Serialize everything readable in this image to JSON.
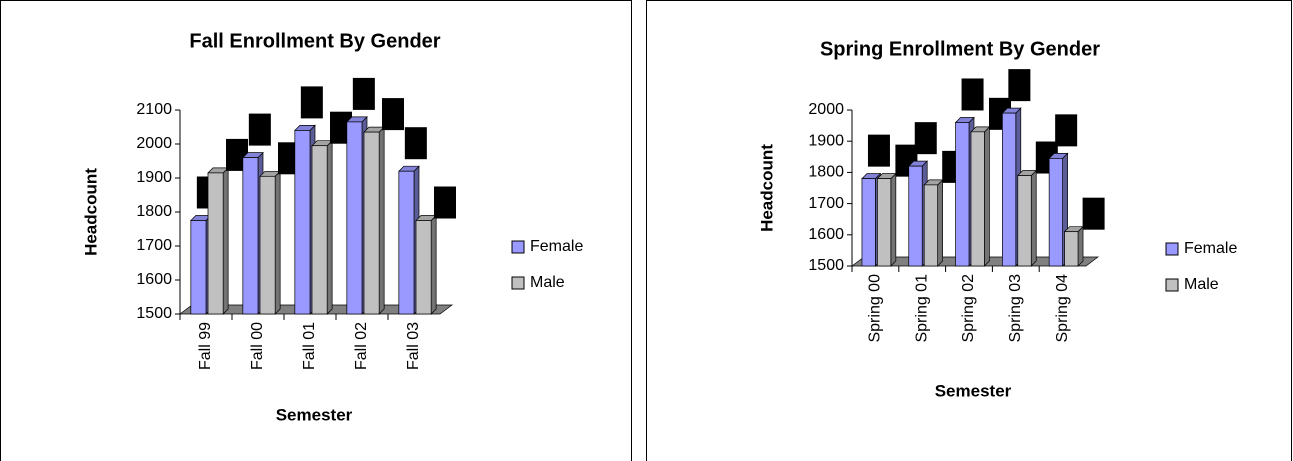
{
  "chart_data": [
    {
      "type": "bar3d",
      "title": "Fall Enrollment By Gender",
      "x_label": "Semester",
      "y_label": "Headcount",
      "categories": [
        "Fall 99",
        "Fall 00",
        "Fall 01",
        "Fall 02",
        "Fall 03"
      ],
      "series": [
        {
          "name": "Female",
          "color": "#9999ff",
          "values": [
            1775,
            1960,
            2040,
            2065,
            1920
          ]
        },
        {
          "name": "Male",
          "color": "#c0c0c0",
          "values": [
            1915,
            1905,
            1995,
            2035,
            1775
          ]
        }
      ],
      "ylim": [
        1500,
        2100
      ],
      "yticks": [
        1500,
        1600,
        1700,
        1800,
        1900,
        2000,
        2100
      ],
      "legend": "right"
    },
    {
      "type": "bar3d",
      "title": "Spring Enrollment By Gender",
      "x_label": "Semester",
      "y_label": "Headcount",
      "categories": [
        "Spring 00",
        "Spring 01",
        "Spring 02",
        "Spring 03",
        "Spring 04"
      ],
      "series": [
        {
          "name": "Female",
          "color": "#9999ff",
          "values": [
            1780,
            1820,
            1960,
            1990,
            1845
          ]
        },
        {
          "name": "Male",
          "color": "#c0c0c0",
          "values": [
            1780,
            1760,
            1930,
            1790,
            1610
          ]
        }
      ],
      "ylim": [
        1500,
        2000
      ],
      "yticks": [
        1500,
        1600,
        1700,
        1800,
        1900,
        2000
      ],
      "legend": "right"
    }
  ]
}
